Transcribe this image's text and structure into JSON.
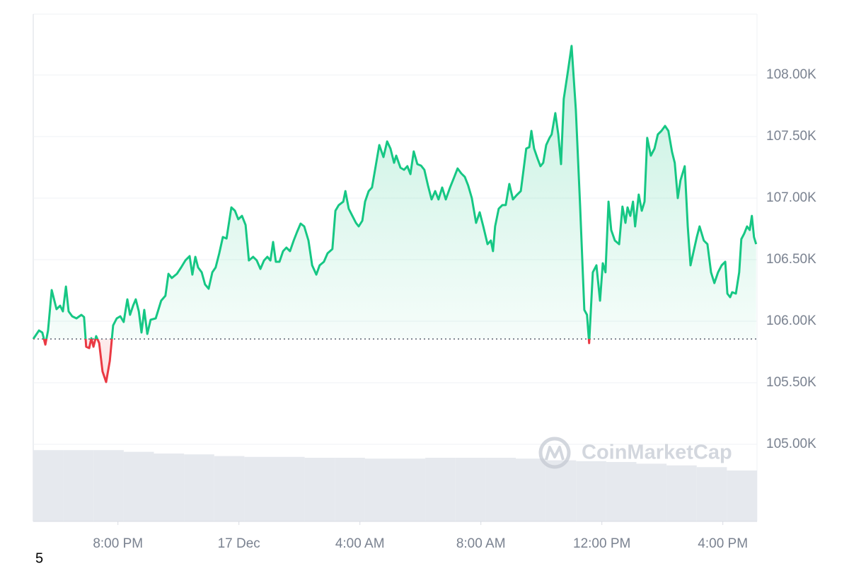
{
  "chart_data": {
    "type": "line",
    "x": [
      17.2,
      17.39,
      17.5,
      17.6,
      17.69,
      17.81,
      17.97,
      18.09,
      18.18,
      18.28,
      18.37,
      18.49,
      18.63,
      18.79,
      18.88,
      18.95,
      19.05,
      19.12,
      19.19,
      19.28,
      19.38,
      19.49,
      19.61,
      19.73,
      19.84,
      19.96,
      20.08,
      20.19,
      20.31,
      20.4,
      20.5,
      20.59,
      20.69,
      20.78,
      20.87,
      20.97,
      21.08,
      21.25,
      21.43,
      21.57,
      21.67,
      21.78,
      21.95,
      22.09,
      22.23,
      22.37,
      22.46,
      22.56,
      22.65,
      22.77,
      22.88,
      23.0,
      23.12,
      23.23,
      23.35,
      23.47,
      23.59,
      23.75,
      23.87,
      23.98,
      24.1,
      24.22,
      24.33,
      24.47,
      24.59,
      24.71,
      24.83,
      24.94,
      25.04,
      25.13,
      25.22,
      25.34,
      25.46,
      25.57,
      25.69,
      25.81,
      25.92,
      26.04,
      26.16,
      26.3,
      26.42,
      26.56,
      26.67,
      26.81,
      26.93,
      27.09,
      27.19,
      27.3,
      27.45,
      27.52,
      27.63,
      27.75,
      27.87,
      27.96,
      28.08,
      28.17,
      28.29,
      28.4,
      28.5,
      28.64,
      28.78,
      28.9,
      29.01,
      29.13,
      29.2,
      29.34,
      29.46,
      29.57,
      29.67,
      29.78,
      29.9,
      30.02,
      30.13,
      30.25,
      30.37,
      30.49,
      30.6,
      30.72,
      30.84,
      30.98,
      31.12,
      31.23,
      31.35,
      31.47,
      31.58,
      31.7,
      31.84,
      31.96,
      32.08,
      32.22,
      32.33,
      32.4,
      32.47,
      32.59,
      32.71,
      32.82,
      32.94,
      33.06,
      33.18,
      33.32,
      33.41,
      33.5,
      33.6,
      33.67,
      33.76,
      33.88,
      33.97,
      34.06,
      34.16,
      34.27,
      34.34,
      34.46,
      34.56,
      34.65,
      34.74,
      34.88,
      35.0,
      35.14,
      35.28,
      35.42,
      35.51,
      35.58,
      35.7,
      35.82,
      35.94,
      36.03,
      36.12,
      36.22,
      36.31,
      36.43,
      36.57,
      36.68,
      36.78,
      36.85,
      36.94,
      37.03,
      37.1,
      37.22,
      37.32,
      37.41,
      37.5,
      37.62,
      37.74,
      37.85,
      37.97,
      38.09,
      38.2,
      38.32,
      38.41,
      38.51,
      38.6,
      38.74,
      38.84,
      38.93,
      39.05,
      39.14,
      39.23,
      39.37,
      39.49,
      39.61,
      39.72,
      39.84,
      39.96,
      40.08,
      40.15,
      40.24,
      40.31,
      40.43,
      40.54,
      40.61,
      40.71,
      40.8,
      40.89,
      40.96,
      41.03,
      41.1
    ],
    "values": [
      105856,
      105925,
      105908,
      105810,
      105925,
      106253,
      106098,
      106126,
      106080,
      106282,
      106080,
      106040,
      106023,
      106052,
      106034,
      105793,
      105782,
      105862,
      105793,
      105879,
      105822,
      105592,
      105506,
      105678,
      105966,
      106023,
      106040,
      105994,
      106178,
      106052,
      106126,
      106178,
      106080,
      105908,
      106092,
      105897,
      106012,
      106023,
      106167,
      106207,
      106385,
      106351,
      106385,
      106437,
      106494,
      106529,
      106379,
      106523,
      106437,
      106397,
      106299,
      106264,
      106397,
      106437,
      106552,
      106684,
      106672,
      106925,
      106897,
      106828,
      106856,
      106782,
      106494,
      106523,
      106494,
      106425,
      106494,
      106523,
      106494,
      106644,
      106483,
      106483,
      106569,
      106598,
      106569,
      106655,
      106724,
      106793,
      106770,
      106655,
      106454,
      106379,
      106454,
      106483,
      106552,
      106586,
      106897,
      106943,
      106971,
      107057,
      106914,
      106856,
      106799,
      106770,
      106816,
      106971,
      107057,
      107086,
      107230,
      107431,
      107333,
      107460,
      107402,
      107287,
      107345,
      107247,
      107230,
      107259,
      107195,
      107379,
      107276,
      107264,
      107230,
      107103,
      106989,
      107057,
      106989,
      107086,
      106989,
      107086,
      107172,
      107241,
      107201,
      107172,
      107103,
      107000,
      106799,
      106885,
      106770,
      106626,
      106655,
      106569,
      106770,
      106914,
      106943,
      106943,
      107115,
      106989,
      107023,
      107057,
      107230,
      107402,
      107414,
      107546,
      107402,
      107316,
      107259,
      107287,
      107431,
      107489,
      107517,
      107690,
      107517,
      107276,
      107805,
      108034,
      108236,
      107718,
      106943,
      106092,
      106052,
      105822,
      106397,
      106454,
      106167,
      106471,
      106397,
      106971,
      106741,
      106655,
      106626,
      106931,
      106799,
      106925,
      106856,
      106971,
      106770,
      107029,
      106897,
      106971,
      107489,
      107345,
      107402,
      107517,
      107546,
      107586,
      107546,
      107374,
      107287,
      107000,
      107144,
      107259,
      106770,
      106454,
      106586,
      106684,
      106770,
      106655,
      106626,
      106397,
      106310,
      106397,
      106454,
      106483,
      106224,
      106195,
      106236,
      106224,
      106397,
      106667,
      106713,
      106770,
      106741,
      106856,
      106684,
      106626
    ],
    "baseline": 105856,
    "up_color": "#16c784",
    "down_color": "#ea3943",
    "xlim": [
      17.2,
      41.13
    ],
    "xticks": [
      {
        "value": 20,
        "label": "8:00 PM"
      },
      {
        "value": 24,
        "label": "17 Dec"
      },
      {
        "value": 28,
        "label": "4:00 AM"
      },
      {
        "value": 32,
        "label": "8:00 AM"
      },
      {
        "value": 36,
        "label": "12:00 PM"
      },
      {
        "value": 40,
        "label": "4:00 PM"
      }
    ],
    "ylim": [
      104374,
      108494
    ],
    "yticks": [
      {
        "value": 105000,
        "label": "105.00K"
      },
      {
        "value": 105500,
        "label": "105.50K"
      },
      {
        "value": 106000,
        "label": "106.00K"
      },
      {
        "value": 106500,
        "label": "106.50K"
      },
      {
        "value": 107000,
        "label": "107.00K"
      },
      {
        "value": 107500,
        "label": "107.50K"
      },
      {
        "value": 108000,
        "label": "108.00K"
      }
    ],
    "grid": true,
    "volume_values": [
      84,
      84,
      84,
      82,
      80,
      79,
      77,
      76,
      76,
      75,
      75,
      74,
      74,
      75,
      75,
      75,
      74,
      72,
      71,
      70,
      68,
      66,
      64,
      60
    ],
    "volume_lim": [
      0,
      100
    ],
    "volume_color": "#e6e9ee",
    "watermark": "CoinMarketCap",
    "footnote": "5"
  }
}
